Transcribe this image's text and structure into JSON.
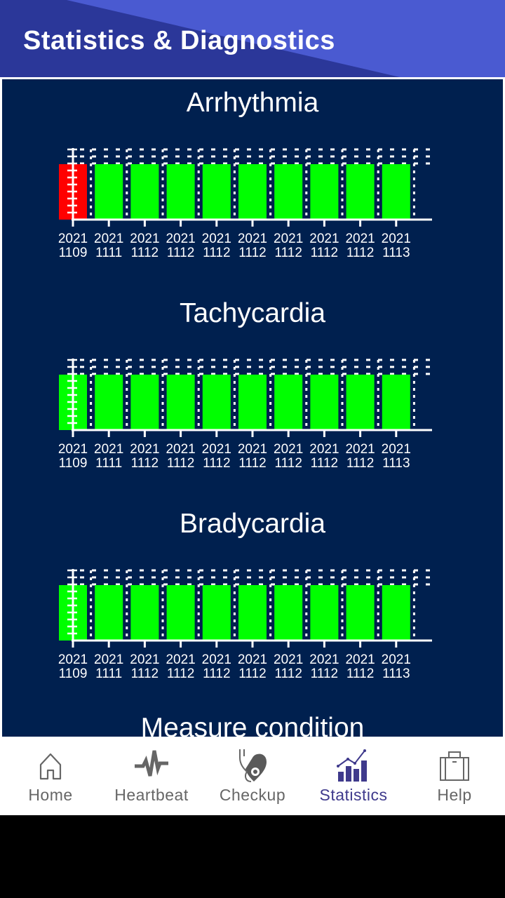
{
  "header": {
    "title": "Statistics & Diagnostics"
  },
  "colors": {
    "header_dark": "#2b3799",
    "header_light": "#4a5ad1",
    "panel_bg": "#00204f",
    "bar_normal": "#00ff00",
    "bar_alert": "#ff0000",
    "nav_active": "#3f3a8c",
    "nav_inactive": "#666666"
  },
  "chart_data": [
    {
      "type": "bar",
      "title": "Arrhythmia",
      "categories": [
        "2021 1109",
        "2021 1111",
        "2021 1112",
        "2021 1112",
        "2021 1112",
        "2021 1112",
        "2021 1112",
        "2021 1112",
        "2021 1112",
        "2021 1113"
      ],
      "values": [
        1,
        1,
        1,
        1,
        1,
        1,
        1,
        1,
        1,
        1
      ],
      "bar_colors": [
        "#ff0000",
        "#00ff00",
        "#00ff00",
        "#00ff00",
        "#00ff00",
        "#00ff00",
        "#00ff00",
        "#00ff00",
        "#00ff00",
        "#00ff00"
      ],
      "xlabel": "",
      "ylabel": "",
      "grid": true,
      "legend": "none"
    },
    {
      "type": "bar",
      "title": "Tachycardia",
      "categories": [
        "2021 1109",
        "2021 1111",
        "2021 1112",
        "2021 1112",
        "2021 1112",
        "2021 1112",
        "2021 1112",
        "2021 1112",
        "2021 1112",
        "2021 1113"
      ],
      "values": [
        1,
        1,
        1,
        1,
        1,
        1,
        1,
        1,
        1,
        1
      ],
      "bar_colors": [
        "#00ff00",
        "#00ff00",
        "#00ff00",
        "#00ff00",
        "#00ff00",
        "#00ff00",
        "#00ff00",
        "#00ff00",
        "#00ff00",
        "#00ff00"
      ],
      "xlabel": "",
      "ylabel": "",
      "grid": true,
      "legend": "none"
    },
    {
      "type": "bar",
      "title": "Bradycardia",
      "categories": [
        "2021 1109",
        "2021 1111",
        "2021 1112",
        "2021 1112",
        "2021 1112",
        "2021 1112",
        "2021 1112",
        "2021 1112",
        "2021 1112",
        "2021 1113"
      ],
      "values": [
        1,
        1,
        1,
        1,
        1,
        1,
        1,
        1,
        1,
        1
      ],
      "bar_colors": [
        "#00ff00",
        "#00ff00",
        "#00ff00",
        "#00ff00",
        "#00ff00",
        "#00ff00",
        "#00ff00",
        "#00ff00",
        "#00ff00",
        "#00ff00"
      ],
      "xlabel": "",
      "ylabel": "",
      "grid": true,
      "legend": "none"
    }
  ],
  "charts": [
    {
      "title": "Arrhythmia",
      "labels": [
        [
          "2021",
          "1109"
        ],
        [
          "2021",
          "1111"
        ],
        [
          "2021",
          "1112"
        ],
        [
          "2021",
          "1112"
        ],
        [
          "2021",
          "1112"
        ],
        [
          "2021",
          "1112"
        ],
        [
          "2021",
          "1112"
        ],
        [
          "2021",
          "1112"
        ],
        [
          "2021",
          "1112"
        ],
        [
          "2021",
          "1113"
        ]
      ]
    },
    {
      "title": "Tachycardia",
      "labels": [
        [
          "2021",
          "1109"
        ],
        [
          "2021",
          "1111"
        ],
        [
          "2021",
          "1112"
        ],
        [
          "2021",
          "1112"
        ],
        [
          "2021",
          "1112"
        ],
        [
          "2021",
          "1112"
        ],
        [
          "2021",
          "1112"
        ],
        [
          "2021",
          "1112"
        ],
        [
          "2021",
          "1112"
        ],
        [
          "2021",
          "1113"
        ]
      ]
    },
    {
      "title": "Bradycardia",
      "labels": [
        [
          "2021",
          "1109"
        ],
        [
          "2021",
          "1111"
        ],
        [
          "2021",
          "1112"
        ],
        [
          "2021",
          "1112"
        ],
        [
          "2021",
          "1112"
        ],
        [
          "2021",
          "1112"
        ],
        [
          "2021",
          "1112"
        ],
        [
          "2021",
          "1112"
        ],
        [
          "2021",
          "1112"
        ],
        [
          "2021",
          "1113"
        ]
      ]
    }
  ],
  "next_section": {
    "title": "Measure condition"
  },
  "nav": {
    "items": [
      {
        "label": "Home",
        "icon": "home-icon",
        "active": false
      },
      {
        "label": "Heartbeat",
        "icon": "heartbeat-icon",
        "active": false
      },
      {
        "label": "Checkup",
        "icon": "stethoscope-heart-icon",
        "active": false
      },
      {
        "label": "Statistics",
        "icon": "statistics-icon",
        "active": true
      },
      {
        "label": "Help",
        "icon": "briefcase-icon",
        "active": false
      }
    ]
  }
}
